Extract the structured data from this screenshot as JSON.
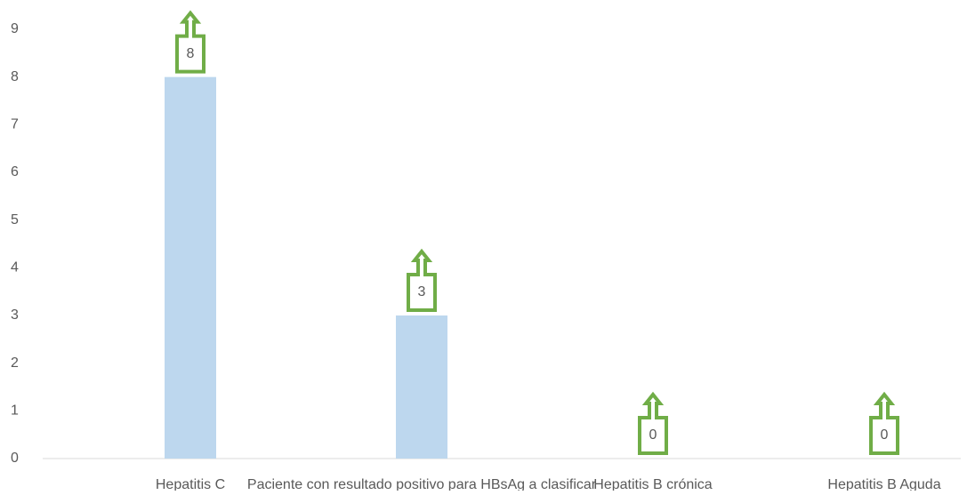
{
  "chart_data": {
    "type": "bar",
    "categories": [
      "Hepatitis C",
      "Paciente con resultado positivo para HBsAg a clasificar",
      "Hepatitis B crónica",
      "Hepatitis B Aguda"
    ],
    "values": [
      8,
      3,
      0,
      0
    ],
    "color": "#bdd7ee",
    "label_color": "#70ad47",
    "ylim": [
      0,
      9
    ],
    "yticks": [
      0,
      1,
      2,
      3,
      4,
      5,
      6,
      7,
      8,
      9
    ],
    "grid": false
  }
}
